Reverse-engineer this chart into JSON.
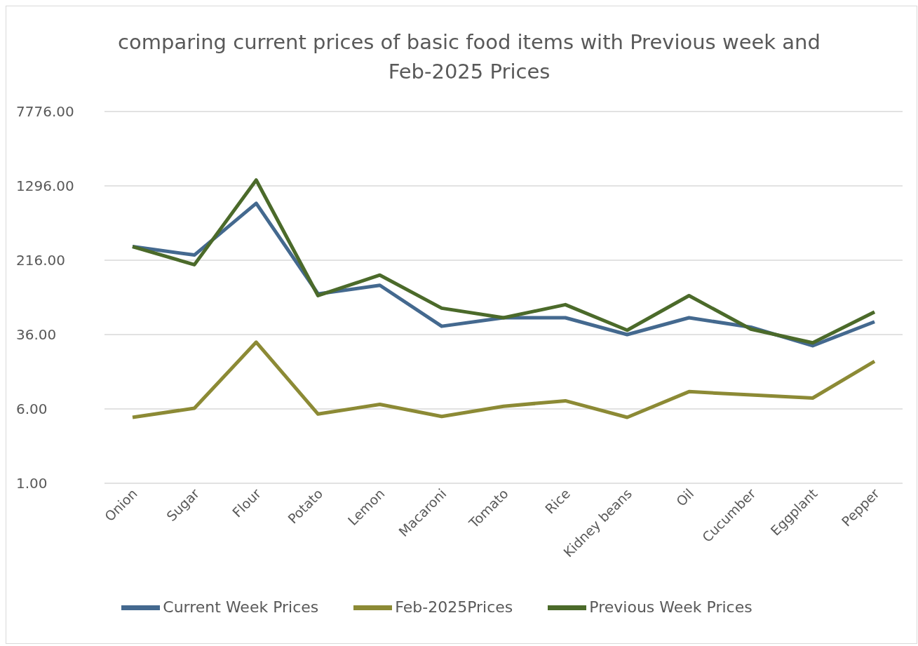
{
  "chart_data": {
    "type": "line",
    "title": "comparing current prices of basic food items with Previous week and Feb-2025 Prices",
    "categories": [
      "Onion",
      "Sugar",
      "Flour",
      "Potato",
      "Lemon",
      "Macaroni",
      "Tomato",
      "Rice",
      "Kidney beans",
      "Oil",
      "Cucumber",
      "Eggplant",
      "Pepper"
    ],
    "series": [
      {
        "name": "Current Week Prices",
        "color": "#44698f",
        "values": [
          300,
          245,
          850,
          96,
          118,
          44,
          54,
          54,
          36,
          54,
          43,
          27.5,
          49
        ]
      },
      {
        "name": "Previous Week Prices",
        "color": "#4b6a2a",
        "values": [
          300,
          194,
          1490,
          92,
          151,
          68,
          54,
          74,
          40,
          92,
          41,
          29.5,
          62
        ]
      },
      {
        "name": "Feb-2025Prices",
        "color": "#8c8a35",
        "values": [
          4.9,
          6.1,
          30,
          5.3,
          6.7,
          5.0,
          6.4,
          7.3,
          4.9,
          9.1,
          8.4,
          7.8,
          18.9
        ]
      }
    ],
    "log": "y",
    "ylim": [
      1,
      7776
    ],
    "yticks": [
      {
        "value": 1,
        "label": "1.00"
      },
      {
        "value": 6,
        "label": "6.00"
      },
      {
        "value": 36,
        "label": "36.00"
      },
      {
        "value": 216,
        "label": "216.00"
      },
      {
        "value": 1296,
        "label": "1296.00"
      },
      {
        "value": 7776,
        "label": "7776.00"
      }
    ],
    "grid": "y",
    "legend": "bottom",
    "marker": "none",
    "line_style": "solid"
  }
}
